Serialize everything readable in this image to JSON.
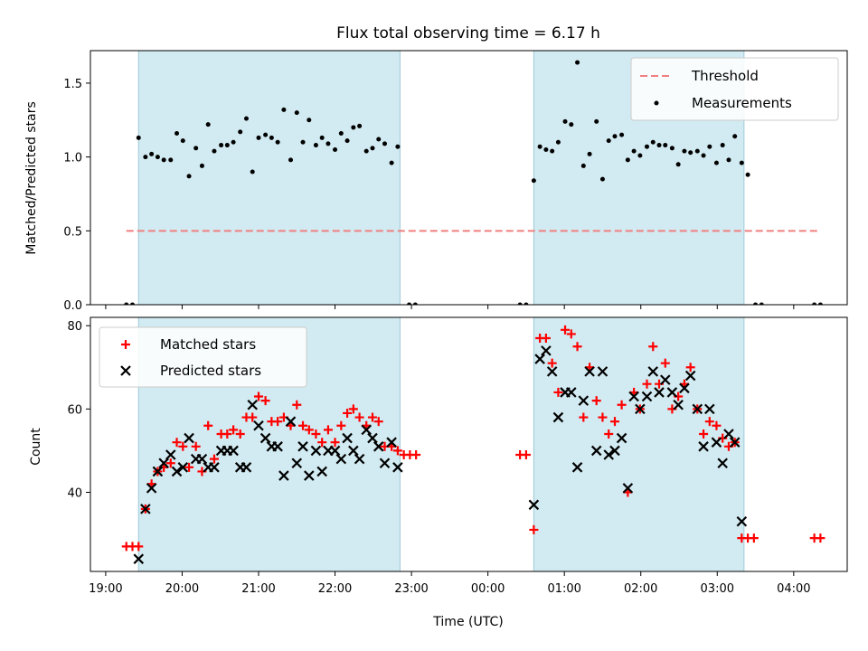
{
  "chart_data": [
    {
      "type": "scatter",
      "title": "Flux total observing time = 6.17 h",
      "xlabel": "",
      "ylabel": "Matched/Predicted stars",
      "ylim": [
        0,
        1.72
      ],
      "xlim": [
        -0.2,
        9.7
      ],
      "yticks": [
        0.0,
        0.5,
        1.0,
        1.5
      ],
      "ytick_labels": [
        "0.0",
        "0.5",
        "1.0",
        "1.5"
      ],
      "x_tick_labels": [],
      "legend": {
        "placement": "upper right",
        "entries": [
          "Threshold",
          "Measurements"
        ]
      },
      "shaded_intervals": [
        [
          0.43,
          3.85
        ],
        [
          5.6,
          8.35
        ]
      ],
      "threshold": {
        "name": "Threshold",
        "value": 0.5,
        "x_range": [
          0.27,
          9.35
        ],
        "color": "#f08080"
      },
      "series": [
        {
          "name": "Measurements",
          "color": "#000000",
          "points": [
            [
              0.27,
              0.0
            ],
            [
              0.35,
              0.0
            ],
            [
              0.43,
              1.13
            ],
            [
              0.52,
              1.0
            ],
            [
              0.6,
              1.02
            ],
            [
              0.68,
              1.0
            ],
            [
              0.76,
              0.98
            ],
            [
              0.85,
              0.98
            ],
            [
              0.93,
              1.16
            ],
            [
              1.01,
              1.11
            ],
            [
              1.09,
              0.87
            ],
            [
              1.18,
              1.06
            ],
            [
              1.26,
              0.94
            ],
            [
              1.34,
              1.22
            ],
            [
              1.42,
              1.04
            ],
            [
              1.51,
              1.08
            ],
            [
              1.59,
              1.08
            ],
            [
              1.67,
              1.1
            ],
            [
              1.76,
              1.17
            ],
            [
              1.84,
              1.26
            ],
            [
              1.92,
              0.9
            ],
            [
              2.0,
              1.13
            ],
            [
              2.09,
              1.15
            ],
            [
              2.17,
              1.13
            ],
            [
              2.25,
              1.1
            ],
            [
              2.33,
              1.32
            ],
            [
              2.42,
              0.98
            ],
            [
              2.5,
              1.3
            ],
            [
              2.58,
              1.1
            ],
            [
              2.66,
              1.25
            ],
            [
              2.75,
              1.08
            ],
            [
              2.83,
              1.13
            ],
            [
              2.91,
              1.09
            ],
            [
              3.0,
              1.05
            ],
            [
              3.08,
              1.16
            ],
            [
              3.16,
              1.11
            ],
            [
              3.24,
              1.2
            ],
            [
              3.32,
              1.21
            ],
            [
              3.41,
              1.04
            ],
            [
              3.49,
              1.06
            ],
            [
              3.57,
              1.12
            ],
            [
              3.65,
              1.09
            ],
            [
              3.74,
              0.96
            ],
            [
              3.82,
              1.07
            ],
            [
              3.97,
              0.0
            ],
            [
              4.05,
              0.0
            ],
            [
              5.42,
              0.0
            ],
            [
              5.5,
              0.0
            ],
            [
              5.6,
              0.84
            ],
            [
              5.68,
              1.07
            ],
            [
              5.76,
              1.05
            ],
            [
              5.84,
              1.04
            ],
            [
              5.92,
              1.1
            ],
            [
              6.01,
              1.24
            ],
            [
              6.09,
              1.22
            ],
            [
              6.17,
              1.64
            ],
            [
              6.25,
              0.94
            ],
            [
              6.33,
              1.02
            ],
            [
              6.42,
              1.24
            ],
            [
              6.5,
              0.85
            ],
            [
              6.58,
              1.11
            ],
            [
              6.66,
              1.14
            ],
            [
              6.75,
              1.15
            ],
            [
              6.83,
              0.98
            ],
            [
              6.91,
              1.04
            ],
            [
              6.99,
              1.01
            ],
            [
              7.08,
              1.07
            ],
            [
              7.16,
              1.1
            ],
            [
              7.24,
              1.08
            ],
            [
              7.32,
              1.08
            ],
            [
              7.41,
              1.06
            ],
            [
              7.49,
              0.95
            ],
            [
              7.57,
              1.04
            ],
            [
              7.65,
              1.03
            ],
            [
              7.74,
              1.04
            ],
            [
              7.82,
              1.01
            ],
            [
              7.9,
              1.07
            ],
            [
              7.99,
              0.96
            ],
            [
              8.07,
              1.08
            ],
            [
              8.15,
              0.98
            ],
            [
              8.23,
              1.14
            ],
            [
              8.32,
              0.96
            ],
            [
              8.4,
              0.88
            ],
            [
              8.5,
              0.0
            ],
            [
              8.58,
              0.0
            ],
            [
              9.27,
              0.0
            ],
            [
              9.35,
              0.0
            ]
          ]
        }
      ]
    },
    {
      "type": "scatter",
      "title": "",
      "xlabel": "Time (UTC)",
      "ylabel": "Count",
      "ylim": [
        21,
        82
      ],
      "xlim": [
        -0.2,
        9.7
      ],
      "yticks": [
        40,
        60,
        80
      ],
      "ytick_labels": [
        "40",
        "60",
        "80"
      ],
      "x_tick_labels": [
        "19:00",
        "20:00",
        "21:00",
        "22:00",
        "23:00",
        "00:00",
        "01:00",
        "02:00",
        "03:00",
        "04:00"
      ],
      "legend": {
        "placement": "upper left",
        "entries": [
          "Matched stars",
          "Predicted stars"
        ]
      },
      "shaded_intervals": [
        [
          0.43,
          3.85
        ],
        [
          5.6,
          8.35
        ]
      ],
      "series": [
        {
          "name": "Matched stars",
          "marker": "plus",
          "color": "#ff0000",
          "points": [
            [
              0.27,
              27
            ],
            [
              0.35,
              27
            ],
            [
              0.43,
              27
            ],
            [
              0.52,
              36
            ],
            [
              0.6,
              42
            ],
            [
              0.68,
              45
            ],
            [
              0.76,
              46
            ],
            [
              0.85,
              47
            ],
            [
              0.93,
              52
            ],
            [
              1.01,
              51
            ],
            [
              1.09,
              46
            ],
            [
              1.18,
              51
            ],
            [
              1.26,
              45
            ],
            [
              1.34,
              56
            ],
            [
              1.42,
              48
            ],
            [
              1.51,
              54
            ],
            [
              1.59,
              54
            ],
            [
              1.67,
              55
            ],
            [
              1.76,
              54
            ],
            [
              1.84,
              58
            ],
            [
              1.92,
              58
            ],
            [
              2.0,
              63
            ],
            [
              2.09,
              62
            ],
            [
              2.17,
              57
            ],
            [
              2.25,
              57
            ],
            [
              2.33,
              58
            ],
            [
              2.42,
              56
            ],
            [
              2.5,
              61
            ],
            [
              2.58,
              56
            ],
            [
              2.66,
              55
            ],
            [
              2.75,
              54
            ],
            [
              2.83,
              52
            ],
            [
              2.91,
              55
            ],
            [
              3.0,
              52
            ],
            [
              3.08,
              56
            ],
            [
              3.16,
              59
            ],
            [
              3.24,
              60
            ],
            [
              3.32,
              58
            ],
            [
              3.41,
              56
            ],
            [
              3.49,
              58
            ],
            [
              3.57,
              57
            ],
            [
              3.65,
              51
            ],
            [
              3.74,
              51
            ],
            [
              3.82,
              50
            ],
            [
              3.9,
              49
            ],
            [
              3.98,
              49
            ],
            [
              4.06,
              49
            ],
            [
              5.42,
              49
            ],
            [
              5.5,
              49
            ],
            [
              5.6,
              31
            ],
            [
              5.68,
              77
            ],
            [
              5.76,
              77
            ],
            [
              5.84,
              71
            ],
            [
              5.92,
              64
            ],
            [
              6.01,
              79
            ],
            [
              6.09,
              78
            ],
            [
              6.17,
              75
            ],
            [
              6.25,
              58
            ],
            [
              6.33,
              70
            ],
            [
              6.42,
              62
            ],
            [
              6.5,
              58
            ],
            [
              6.58,
              54
            ],
            [
              6.66,
              57
            ],
            [
              6.75,
              61
            ],
            [
              6.83,
              40
            ],
            [
              6.91,
              64
            ],
            [
              6.99,
              60
            ],
            [
              7.08,
              66
            ],
            [
              7.16,
              75
            ],
            [
              7.24,
              66
            ],
            [
              7.32,
              71
            ],
            [
              7.41,
              60
            ],
            [
              7.49,
              63
            ],
            [
              7.57,
              66
            ],
            [
              7.65,
              70
            ],
            [
              7.74,
              60
            ],
            [
              7.82,
              54
            ],
            [
              7.9,
              57
            ],
            [
              7.99,
              56
            ],
            [
              8.07,
              53
            ],
            [
              8.15,
              51
            ],
            [
              8.23,
              52
            ],
            [
              8.32,
              29
            ],
            [
              8.4,
              29
            ],
            [
              8.48,
              29
            ],
            [
              9.27,
              29
            ],
            [
              9.35,
              29
            ]
          ]
        },
        {
          "name": "Predicted stars",
          "marker": "x",
          "color": "#000000",
          "points": [
            [
              0.43,
              24
            ],
            [
              0.52,
              36
            ],
            [
              0.6,
              41
            ],
            [
              0.68,
              45
            ],
            [
              0.76,
              47
            ],
            [
              0.85,
              49
            ],
            [
              0.93,
              45
            ],
            [
              1.01,
              46
            ],
            [
              1.09,
              53
            ],
            [
              1.18,
              48
            ],
            [
              1.26,
              48
            ],
            [
              1.34,
              46
            ],
            [
              1.42,
              46
            ],
            [
              1.51,
              50
            ],
            [
              1.59,
              50
            ],
            [
              1.67,
              50
            ],
            [
              1.76,
              46
            ],
            [
              1.84,
              46
            ],
            [
              1.92,
              61
            ],
            [
              2.0,
              56
            ],
            [
              2.09,
              53
            ],
            [
              2.17,
              51
            ],
            [
              2.25,
              51
            ],
            [
              2.33,
              44
            ],
            [
              2.42,
              57
            ],
            [
              2.5,
              47
            ],
            [
              2.58,
              51
            ],
            [
              2.66,
              44
            ],
            [
              2.75,
              50
            ],
            [
              2.83,
              45
            ],
            [
              2.91,
              50
            ],
            [
              3.0,
              50
            ],
            [
              3.08,
              48
            ],
            [
              3.16,
              53
            ],
            [
              3.24,
              50
            ],
            [
              3.32,
              48
            ],
            [
              3.41,
              55
            ],
            [
              3.49,
              53
            ],
            [
              3.57,
              51
            ],
            [
              3.65,
              47
            ],
            [
              3.74,
              52
            ],
            [
              3.82,
              46
            ],
            [
              5.6,
              37
            ],
            [
              5.68,
              72
            ],
            [
              5.76,
              74
            ],
            [
              5.84,
              69
            ],
            [
              5.92,
              58
            ],
            [
              6.01,
              64
            ],
            [
              6.09,
              64
            ],
            [
              6.17,
              46
            ],
            [
              6.25,
              62
            ],
            [
              6.33,
              69
            ],
            [
              6.42,
              50
            ],
            [
              6.5,
              69
            ],
            [
              6.58,
              49
            ],
            [
              6.66,
              50
            ],
            [
              6.75,
              53
            ],
            [
              6.83,
              41
            ],
            [
              6.91,
              63
            ],
            [
              6.99,
              60
            ],
            [
              7.08,
              63
            ],
            [
              7.16,
              69
            ],
            [
              7.24,
              64
            ],
            [
              7.32,
              67
            ],
            [
              7.41,
              64
            ],
            [
              7.49,
              61
            ],
            [
              7.57,
              65
            ],
            [
              7.65,
              68
            ],
            [
              7.74,
              60
            ],
            [
              7.82,
              51
            ],
            [
              7.9,
              60
            ],
            [
              7.99,
              52
            ],
            [
              8.07,
              47
            ],
            [
              8.15,
              54
            ],
            [
              8.23,
              52
            ],
            [
              8.32,
              33
            ]
          ]
        }
      ]
    }
  ]
}
